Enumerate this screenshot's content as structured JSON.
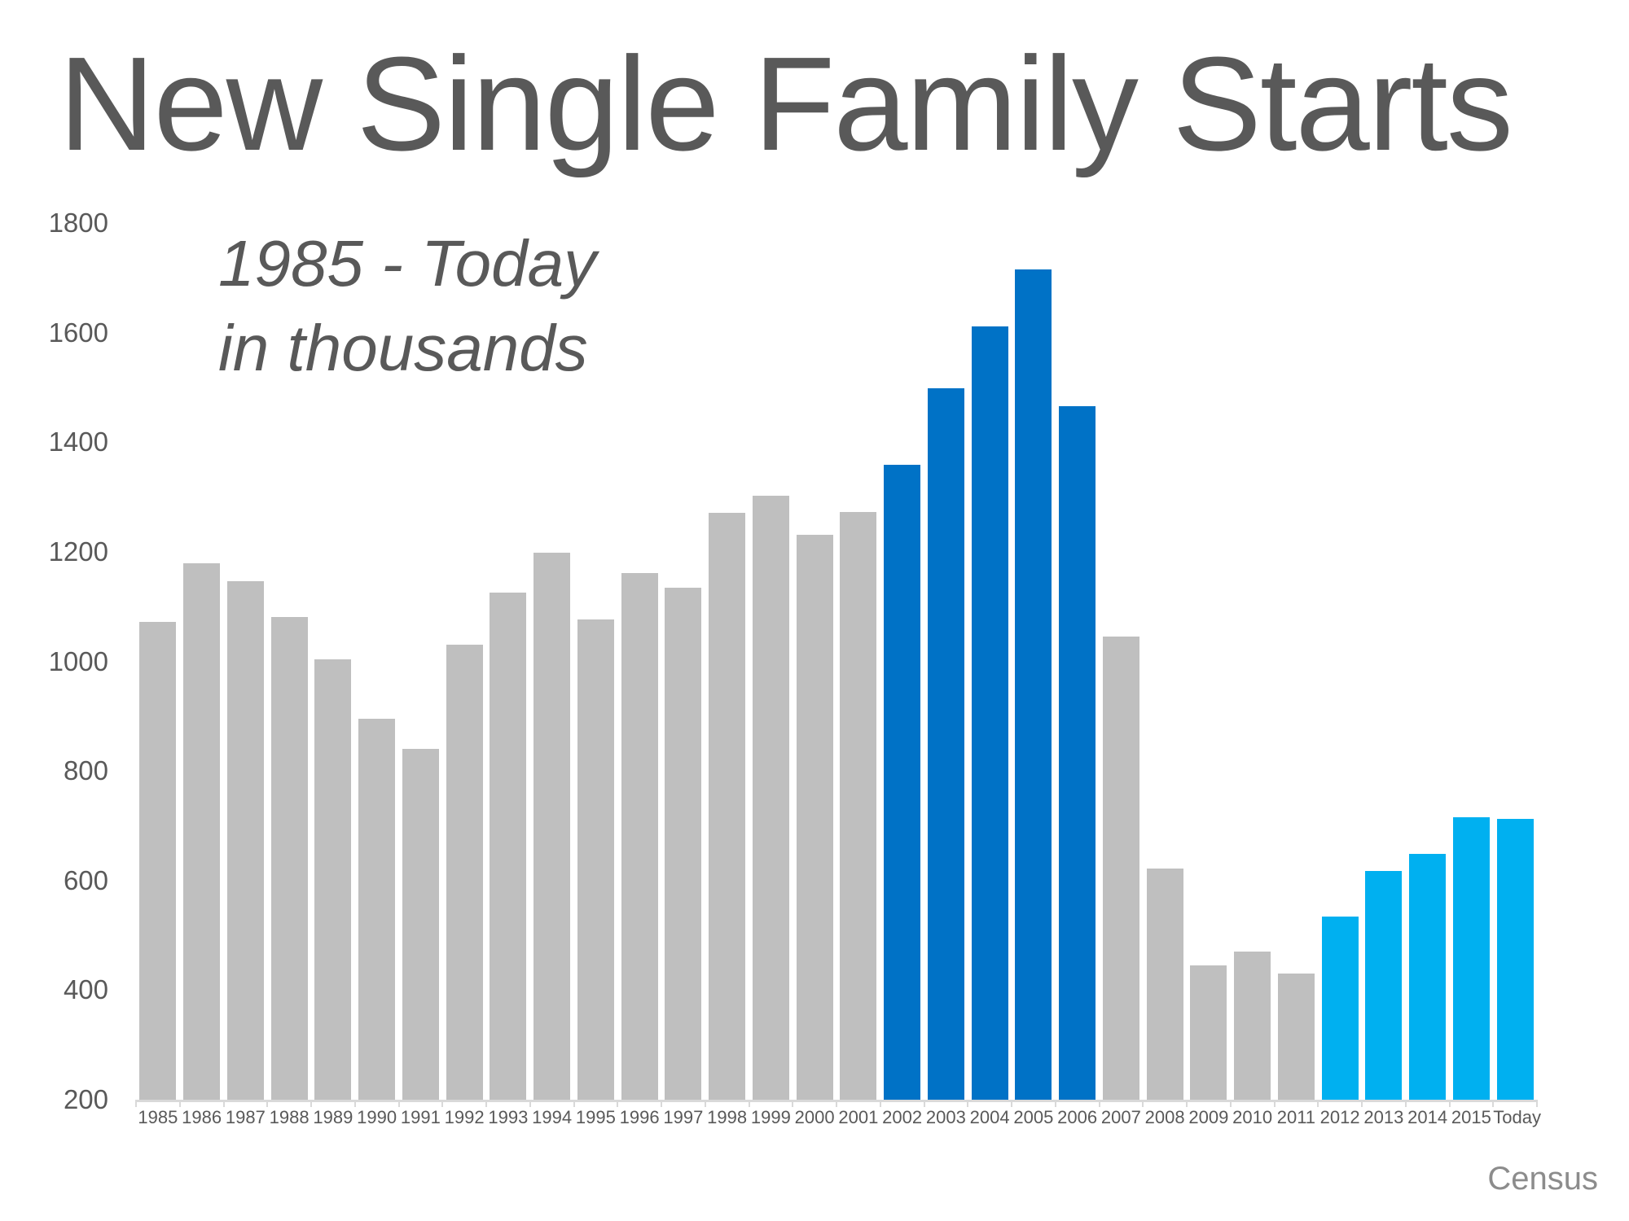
{
  "header": {
    "title": "New Single Family Starts",
    "subtitle_line1": "1985 - Today",
    "subtitle_line2": "in thousands",
    "source": "Census"
  },
  "chart_data": {
    "type": "bar",
    "title": "New Single Family Starts",
    "subtitle": "1985 - Today in thousands",
    "units": "thousands of housing starts",
    "ylim": [
      200,
      1800
    ],
    "yticks": [
      1800,
      1600,
      1400,
      1200,
      1000,
      800,
      600,
      400,
      200
    ],
    "grid": false,
    "legend": "none",
    "source": "Census",
    "colors": {
      "gray": "#bfbfbf",
      "dark_blue": "#0072c6",
      "light_blue": "#00b0f0",
      "text": "#595959",
      "axis": "#d9d9d9"
    },
    "bars": [
      {
        "label": "1985",
        "value": 1072,
        "color": "gray"
      },
      {
        "label": "1986",
        "value": 1179,
        "color": "gray"
      },
      {
        "label": "1987",
        "value": 1146,
        "color": "gray"
      },
      {
        "label": "1988",
        "value": 1081,
        "color": "gray"
      },
      {
        "label": "1989",
        "value": 1003,
        "color": "gray"
      },
      {
        "label": "1990",
        "value": 895,
        "color": "gray"
      },
      {
        "label": "1991",
        "value": 840,
        "color": "gray"
      },
      {
        "label": "1992",
        "value": 1030,
        "color": "gray"
      },
      {
        "label": "1993",
        "value": 1126,
        "color": "gray"
      },
      {
        "label": "1994",
        "value": 1198,
        "color": "gray"
      },
      {
        "label": "1995",
        "value": 1076,
        "color": "gray"
      },
      {
        "label": "1996",
        "value": 1161,
        "color": "gray"
      },
      {
        "label": "1997",
        "value": 1134,
        "color": "gray"
      },
      {
        "label": "1998",
        "value": 1271,
        "color": "gray"
      },
      {
        "label": "1999",
        "value": 1302,
        "color": "gray"
      },
      {
        "label": "2000",
        "value": 1231,
        "color": "gray"
      },
      {
        "label": "2001",
        "value": 1273,
        "color": "gray"
      },
      {
        "label": "2002",
        "value": 1359,
        "color": "dark_blue"
      },
      {
        "label": "2003",
        "value": 1499,
        "color": "dark_blue"
      },
      {
        "label": "2004",
        "value": 1611,
        "color": "dark_blue"
      },
      {
        "label": "2005",
        "value": 1716,
        "color": "dark_blue"
      },
      {
        "label": "2006",
        "value": 1465,
        "color": "dark_blue"
      },
      {
        "label": "2007",
        "value": 1046,
        "color": "gray"
      },
      {
        "label": "2008",
        "value": 622,
        "color": "gray"
      },
      {
        "label": "2009",
        "value": 445,
        "color": "gray"
      },
      {
        "label": "2010",
        "value": 471,
        "color": "gray"
      },
      {
        "label": "2011",
        "value": 431,
        "color": "gray"
      },
      {
        "label": "2012",
        "value": 535,
        "color": "light_blue"
      },
      {
        "label": "2013",
        "value": 618,
        "color": "light_blue"
      },
      {
        "label": "2014",
        "value": 648,
        "color": "light_blue"
      },
      {
        "label": "2015",
        "value": 715,
        "color": "light_blue"
      },
      {
        "label": "Today",
        "value": 713,
        "color": "light_blue"
      }
    ]
  }
}
